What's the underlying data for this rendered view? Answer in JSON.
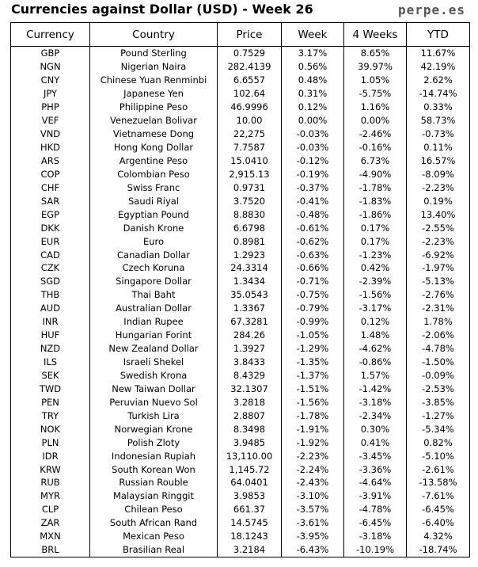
{
  "header": {
    "title": "Currencies against Dollar (USD) - Week 26",
    "brand": "perpe.es"
  },
  "colors": {
    "positive": "#2e8b2e",
    "negative": "#e03030"
  },
  "table": {
    "columns": [
      "Currency",
      "Country",
      "Price",
      "Week",
      "4 Weeks",
      "YTD"
    ],
    "rows": [
      [
        "GBP",
        "Pound Sterling",
        "0.7529",
        "3.17%",
        "8.65%",
        "11.67%"
      ],
      [
        "NGN",
        "Nigerian Naira",
        "282.4139",
        "0.56%",
        "39.97%",
        "42.19%"
      ],
      [
        "CNY",
        "Chinese Yuan Renminbi",
        "6.6557",
        "0.48%",
        "1.05%",
        "2.62%"
      ],
      [
        "JPY",
        "Japanese Yen",
        "102.64",
        "0.31%",
        "-5.75%",
        "-14.74%"
      ],
      [
        "PHP",
        "Philippine Peso",
        "46.9996",
        "0.12%",
        "1.16%",
        "0.33%"
      ],
      [
        "VEF",
        "Venezuelan Bolivar",
        "10.00",
        "0.00%",
        "0.00%",
        "58.73%"
      ],
      [
        "VND",
        "Vietnamese Dong",
        "22,275",
        "-0.03%",
        "-2.46%",
        "-0.73%"
      ],
      [
        "HKD",
        "Hong Kong Dollar",
        "7.7587",
        "-0.03%",
        "-0.16%",
        "0.11%"
      ],
      [
        "ARS",
        "Argentine Peso",
        "15.0410",
        "-0.12%",
        "6.73%",
        "16.57%"
      ],
      [
        "COP",
        "Colombian Peso",
        "2,915.13",
        "-0.19%",
        "-4.90%",
        "-8.09%"
      ],
      [
        "CHF",
        "Swiss Franc",
        "0.9731",
        "-0.37%",
        "-1.78%",
        "-2.23%"
      ],
      [
        "SAR",
        "Saudi Riyal",
        "3.7520",
        "-0.41%",
        "-1.83%",
        "0.19%"
      ],
      [
        "EGP",
        "Egyptian Pound",
        "8.8830",
        "-0.48%",
        "-1.86%",
        "13.40%"
      ],
      [
        "DKK",
        "Danish Krone",
        "6.6798",
        "-0.61%",
        "0.17%",
        "-2.55%"
      ],
      [
        "EUR",
        "Euro",
        "0.8981",
        "-0.62%",
        "0.17%",
        "-2.23%"
      ],
      [
        "CAD",
        "Canadian Dollar",
        "1.2923",
        "-0.63%",
        "-1.23%",
        "-6.92%"
      ],
      [
        "CZK",
        "Czech Koruna",
        "24.3314",
        "-0.66%",
        "0.42%",
        "-1.97%"
      ],
      [
        "SGD",
        "Singapore Dollar",
        "1.3434",
        "-0.71%",
        "-2.39%",
        "-5.13%"
      ],
      [
        "THB",
        "Thai Baht",
        "35.0543",
        "-0.75%",
        "-1.56%",
        "-2.76%"
      ],
      [
        "AUD",
        "Australian Dollar",
        "1.3367",
        "-0.79%",
        "-3.17%",
        "-2.31%"
      ],
      [
        "INR",
        "Indian Rupee",
        "67.3281",
        "-0.99%",
        "0.12%",
        "1.78%"
      ],
      [
        "HUF",
        "Hungarian Forint",
        "284.26",
        "-1.05%",
        "1.48%",
        "-2.06%"
      ],
      [
        "NZD",
        "New Zealand Dollar",
        "1.3927",
        "-1.29%",
        "-4.62%",
        "-4.78%"
      ],
      [
        "ILS",
        "Israeli Shekel",
        "3.8433",
        "-1.35%",
        "-0.86%",
        "-1.50%"
      ],
      [
        "SEK",
        "Swedish Krona",
        "8.4329",
        "-1.37%",
        "1.57%",
        "-0.09%"
      ],
      [
        "TWD",
        "New Taiwan Dollar",
        "32.1307",
        "-1.51%",
        "-1.42%",
        "-2.53%"
      ],
      [
        "PEN",
        "Peruvian Nuevo Sol",
        "3.2818",
        "-1.56%",
        "-3.18%",
        "-3.85%"
      ],
      [
        "TRY",
        "Turkish Lira",
        "2.8807",
        "-1.78%",
        "-2.34%",
        "-1.27%"
      ],
      [
        "NOK",
        "Norwegian Krone",
        "8.3498",
        "-1.91%",
        "0.30%",
        "-5.34%"
      ],
      [
        "PLN",
        "Polish Zloty",
        "3.9485",
        "-1.92%",
        "0.41%",
        "0.82%"
      ],
      [
        "IDR",
        "Indonesian Rupiah",
        "13,110.00",
        "-2.23%",
        "-3.45%",
        "-5.10%"
      ],
      [
        "KRW",
        "South Korean Won",
        "1,145.72",
        "-2.24%",
        "-3.36%",
        "-2.61%"
      ],
      [
        "RUB",
        "Russian Rouble",
        "64.0401",
        "-2.43%",
        "-4.64%",
        "-13.58%"
      ],
      [
        "MYR",
        "Malaysian Ringgit",
        "3.9853",
        "-3.10%",
        "-3.91%",
        "-7.61%"
      ],
      [
        "CLP",
        "Chilean Peso",
        "661.37",
        "-3.57%",
        "-4.78%",
        "-6.45%"
      ],
      [
        "ZAR",
        "South African Rand",
        "14.5745",
        "-3.61%",
        "-6.45%",
        "-6.40%"
      ],
      [
        "MXN",
        "Mexican Peso",
        "18.1243",
        "-3.95%",
        "-3.18%",
        "4.32%"
      ],
      [
        "BRL",
        "Brasilian Real",
        "3.2184",
        "-6.43%",
        "-10.19%",
        "-18.74%"
      ]
    ]
  }
}
